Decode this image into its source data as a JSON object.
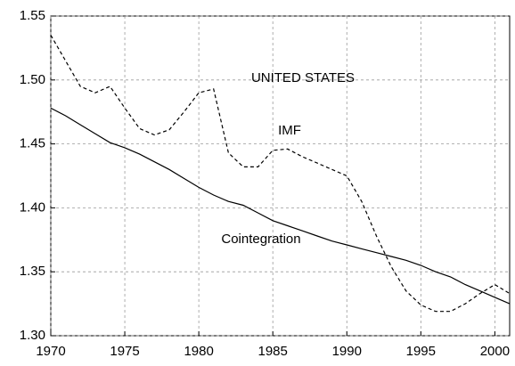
{
  "chart_data": {
    "type": "line",
    "annotations": [
      "UNITED STATES",
      "IMF",
      "Cointegration"
    ],
    "x": [
      1970,
      1971,
      1972,
      1973,
      1974,
      1975,
      1976,
      1977,
      1978,
      1979,
      1980,
      1981,
      1982,
      1983,
      1984,
      1985,
      1986,
      1987,
      1988,
      1989,
      1990,
      1991,
      1992,
      1993,
      1994,
      1995,
      1996,
      1997,
      1998,
      1999,
      2000,
      2001
    ],
    "series": [
      {
        "name": "IMF",
        "color": "#000000",
        "dash": true,
        "values": [
          1.535,
          1.515,
          1.495,
          1.49,
          1.495,
          1.478,
          1.462,
          1.457,
          1.461,
          1.475,
          1.49,
          1.493,
          1.443,
          1.432,
          1.432,
          1.445,
          1.446,
          1.44,
          1.435,
          1.43,
          1.425,
          1.405,
          1.378,
          1.354,
          1.335,
          1.324,
          1.319,
          1.319,
          1.325,
          1.333,
          1.34,
          1.333
        ]
      },
      {
        "name": "Cointegration",
        "color": "#000000",
        "dash": false,
        "values": [
          1.478,
          1.472,
          1.465,
          1.458,
          1.451,
          1.447,
          1.442,
          1.436,
          1.43,
          1.423,
          1.416,
          1.41,
          1.405,
          1.402,
          1.396,
          1.39,
          1.386,
          1.382,
          1.378,
          1.374,
          1.371,
          1.368,
          1.365,
          1.362,
          1.359,
          1.355,
          1.35,
          1.346,
          1.34,
          1.335,
          1.33,
          1.325
        ]
      }
    ],
    "xlim": [
      1970,
      2001
    ],
    "xticks": [
      1970,
      1975,
      1980,
      1985,
      1990,
      1995,
      2000
    ],
    "ylim": [
      1.3,
      1.55
    ],
    "yticks": [
      {
        "value": 1.3,
        "label": "1.30"
      },
      1.35,
      {
        "value": 1.4,
        "label": "1.40"
      },
      1.45,
      {
        "value": 1.5,
        "label": "1.50"
      },
      1.55
    ],
    "grid": true
  }
}
